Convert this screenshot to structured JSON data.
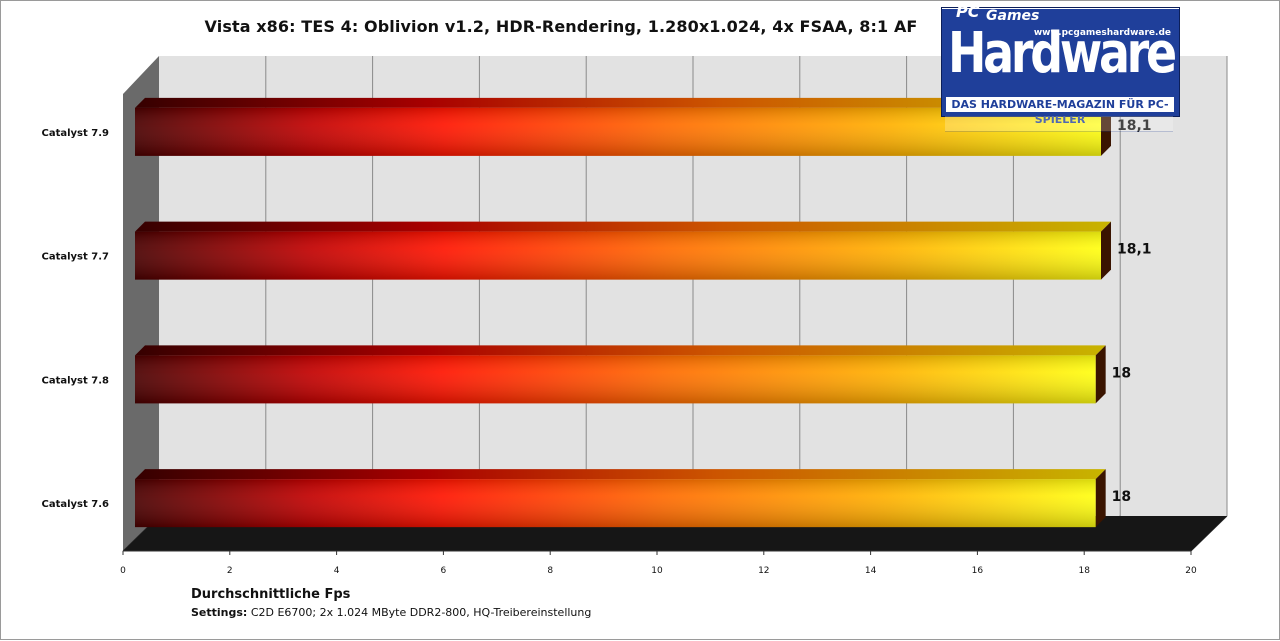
{
  "chart_data": {
    "type": "bar",
    "orientation": "horizontal",
    "title": "Vista x86: TES 4: Oblivion v1.2, HDR-Rendering, 1.280x1.024, 4x FSAA, 8:1 AF",
    "xlabel": "Durchschnittliche Fps",
    "categories": [
      "Catalyst 7.9",
      "Catalyst 7.7",
      "Catalyst 7.8",
      "Catalyst 7.6"
    ],
    "values": [
      18.1,
      18.1,
      18,
      18
    ],
    "value_labels": [
      "18,1",
      "18,1",
      "18",
      "18"
    ],
    "xlim": [
      0,
      20
    ],
    "ticks": [
      "0",
      "2",
      "4",
      "6",
      "8",
      "10",
      "12",
      "14",
      "16",
      "18",
      "20"
    ],
    "grid": true,
    "legend": "none"
  },
  "footer": {
    "settings_label": "Settings:",
    "settings_text": " C2D E6700; 2x 1.024 MByte DDR2-800, HQ-Treibereinstellung"
  },
  "logo": {
    "pc": "PC",
    "games": "Games",
    "url": "www.pcgameshardware.de",
    "main": "Hardware",
    "tagline": "DAS HARDWARE-MAGAZIN FÜR PC-SPIELER"
  },
  "colors": {
    "bar_dark": "#5a0000",
    "bar_red": "#ff1a00",
    "bar_orange": "#ff8c00",
    "bar_yellow": "#ffff00",
    "wall": "#e0e0e0",
    "floor": "#1a1a1a",
    "logo_blue": "#1f3f9a"
  }
}
